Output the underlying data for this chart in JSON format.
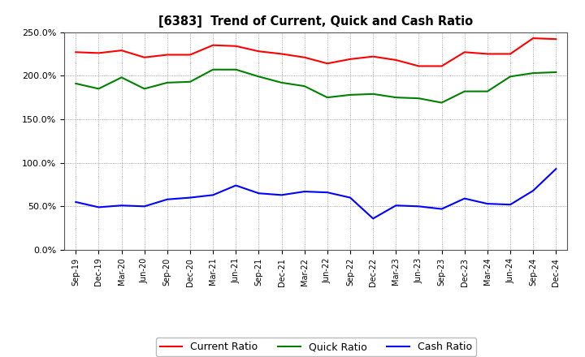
{
  "title": "[6383]  Trend of Current, Quick and Cash Ratio",
  "x_labels": [
    "Sep-19",
    "Dec-19",
    "Mar-20",
    "Jun-20",
    "Sep-20",
    "Dec-20",
    "Mar-21",
    "Jun-21",
    "Sep-21",
    "Dec-21",
    "Mar-22",
    "Jun-22",
    "Sep-22",
    "Dec-22",
    "Mar-23",
    "Jun-23",
    "Sep-23",
    "Dec-23",
    "Mar-24",
    "Jun-24",
    "Sep-24",
    "Dec-24"
  ],
  "current_ratio": [
    227,
    226,
    229,
    221,
    224,
    224,
    235,
    234,
    228,
    225,
    221,
    214,
    219,
    222,
    218,
    211,
    211,
    227,
    225,
    225,
    243,
    242
  ],
  "quick_ratio": [
    191,
    185,
    198,
    185,
    192,
    193,
    207,
    207,
    199,
    192,
    188,
    175,
    178,
    179,
    175,
    174,
    169,
    182,
    182,
    199,
    203,
    204
  ],
  "cash_ratio": [
    55,
    49,
    51,
    50,
    58,
    60,
    63,
    74,
    65,
    63,
    67,
    66,
    60,
    36,
    51,
    50,
    47,
    59,
    53,
    52,
    68,
    93
  ],
  "current_color": "#FF0000",
  "quick_color": "#008000",
  "cash_color": "#0000FF",
  "ylim": [
    0,
    250
  ],
  "yticks": [
    0,
    50,
    100,
    150,
    200,
    250
  ],
  "background_color": "#FFFFFF",
  "grid_color": "#888888"
}
